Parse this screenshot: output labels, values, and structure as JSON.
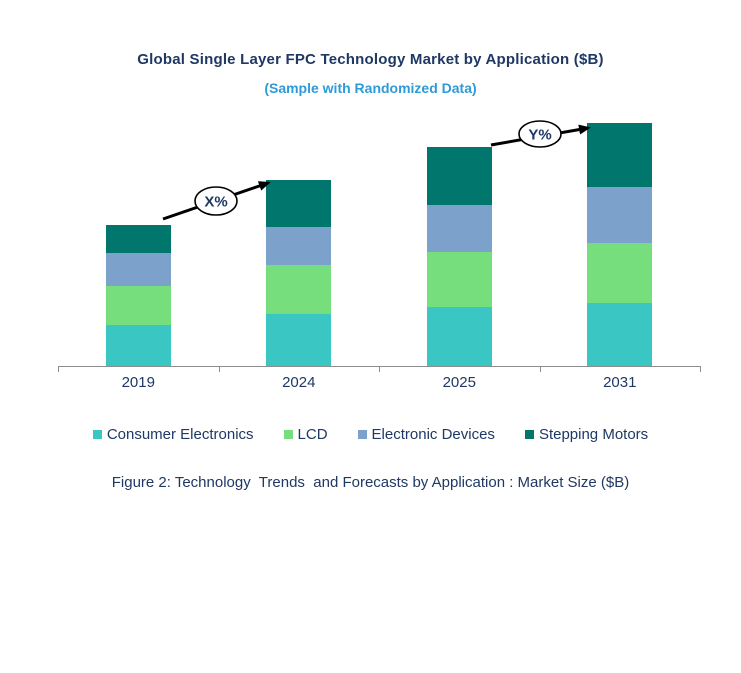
{
  "header": {
    "title": "Global Single Layer FPC Technology Market by Application ($B)",
    "subtitle": "(Sample with Randomized Data)"
  },
  "colors": {
    "title_text": "#1F3864",
    "subtitle_text": "#2E9AD8",
    "body_text": "#1F3864",
    "axis_line": "#8C8C8C",
    "arrow": "#000000",
    "annotation_bubble_fill": "#FFFFFF",
    "annotation_bubble_border": "#000000"
  },
  "chart_data": {
    "type": "bar",
    "stacked": true,
    "title": "Global Single Layer FPC Technology Market by Application ($B)",
    "subtitle": "(Sample with Randomized Data)",
    "categories": [
      "2019",
      "2024",
      "2025",
      "2031"
    ],
    "series": [
      {
        "name": "Consumer Electronics",
        "color": "#3AC7C4",
        "values": [
          42,
          53,
          60,
          64
        ]
      },
      {
        "name": "LCD",
        "color": "#77DE7D",
        "values": [
          39,
          49,
          55,
          60
        ]
      },
      {
        "name": "Electronic Devices",
        "color": "#7CA2CB",
        "values": [
          33,
          38,
          47,
          56
        ]
      },
      {
        "name": "Stepping Motors",
        "color": "#00766C",
        "values": [
          28,
          47,
          58,
          64
        ]
      }
    ],
    "stack_totals": [
      142,
      187,
      220,
      244
    ],
    "value_axis_visible": false,
    "value_unit": "relative units (no value axis shown)",
    "ylim": [
      0,
      260
    ],
    "grid": false,
    "legend_position": "bottom",
    "annotations": [
      {
        "label": "X%",
        "from": "2019",
        "to": "2024"
      },
      {
        "label": "Y%",
        "from": "2025",
        "to": "2031"
      }
    ]
  },
  "caption": "Figure 2: Technology  Trends  and Forecasts by Application : Market Size ($B)"
}
